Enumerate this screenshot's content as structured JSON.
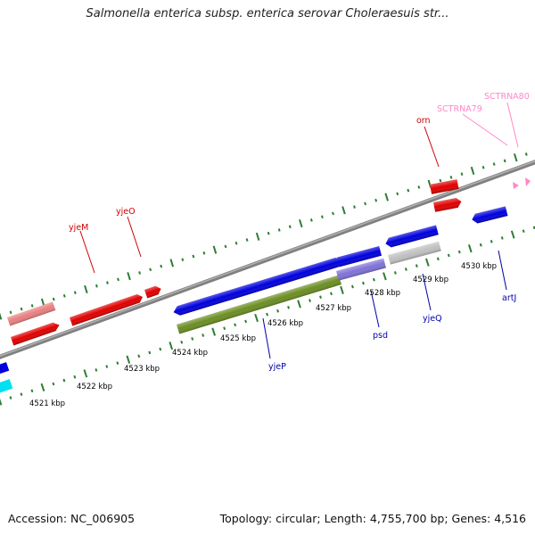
{
  "header": {
    "title": "Salmonella enterica subsp. enterica serovar Choleraesuis str..."
  },
  "footer": {
    "accession": "Accession: NC_006905",
    "topology": "Topology: circular; Length: 4,755,700 bp; Genes: 4,516"
  },
  "colors": {
    "backbone": "#808080",
    "tick": "#2e7d32",
    "forward_gene": "#e00000",
    "forward_gene_light": "#e88080",
    "reverse_gene": "#0000dd",
    "reverse_gene_light": "#7f72d6",
    "pseudo_gene": "#c0c0c0",
    "olive_gene": "#6b8e23",
    "cyan_gene": "#00e0ee",
    "trna": "#ff88c8",
    "forward_label": "#d00000",
    "reverse_label": "#0000aa",
    "trna_label": "#ff88c8"
  },
  "scale_labels": [
    "4521 kbp",
    "4522 kbp",
    "4523 kbp",
    "4524 kbp",
    "4525 kbp",
    "4526 kbp",
    "4527 kbp",
    "4528 kbp",
    "4529 kbp",
    "4530 kbp"
  ],
  "gene_labels": {
    "yjeM": "yjeM",
    "yjeO": "yjeO",
    "orn": "orn",
    "SCTRNA79": "SCTRNA79",
    "SCTRNA80": "SCTRNA80",
    "yjeP": "yjeP",
    "psd": "psd",
    "yjeQ": "yjeQ",
    "artJ": "artJ"
  }
}
